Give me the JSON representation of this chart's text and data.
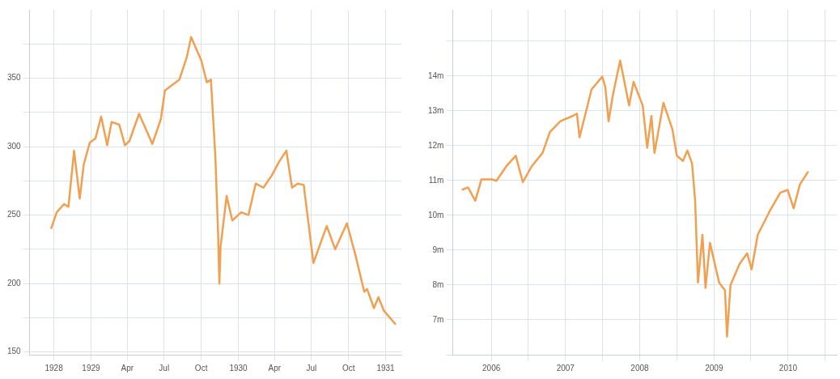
{
  "chart_data": [
    {
      "type": "line",
      "x": [
        "1928-09-24",
        "1928-10-08",
        "1928-10-26",
        "1928-11-06",
        "1928-11-20",
        "1928-12-04",
        "1928-12-14",
        "1928-12-29",
        "1929-01-12",
        "1929-01-26",
        "1929-02-10",
        "1929-02-21",
        "1929-03-12",
        "1929-03-26",
        "1929-04-06",
        "1929-04-30",
        "1929-06-02",
        "1929-06-23",
        "1929-07-03",
        "1929-07-21",
        "1929-08-08",
        "1929-08-26",
        "1929-09-06",
        "1929-10-01",
        "1929-10-15",
        "1929-10-25",
        "1929-11-05",
        "1929-11-12",
        "1929-11-15",
        "1929-11-18",
        "1929-12-03",
        "1929-12-17",
        "1930-01-08",
        "1930-01-26",
        "1930-02-13",
        "1930-03-04",
        "1930-03-25",
        "1930-04-12",
        "1930-04-30",
        "1930-05-14",
        "1930-05-28",
        "1930-06-12",
        "1930-07-06",
        "1930-08-08",
        "1930-08-29",
        "1930-09-27",
        "1930-10-18",
        "1930-11-09",
        "1930-11-16",
        "1930-12-03",
        "1930-12-14",
        "1930-12-28",
        "1931-01-26"
      ],
      "series": [
        {
          "color": "#f0a050",
          "values": [
            240,
            252,
            258,
            256,
            297,
            262,
            287,
            303,
            306,
            322,
            301,
            318,
            316,
            301,
            304,
            324,
            302,
            320,
            341,
            345,
            349,
            365,
            380,
            363,
            347,
            349,
            293,
            235,
            200,
            227,
            264,
            246,
            252,
            250,
            273,
            270,
            279,
            289,
            297,
            270,
            273,
            272,
            215,
            242,
            225,
            244,
            221,
            194,
            196,
            182,
            190,
            180,
            170
          ]
        }
      ],
      "xlim": [
        "1928-08-02",
        "1931-02-09"
      ],
      "xticks": [
        {
          "value": "1928-10",
          "label": "1928"
        },
        {
          "value": "1929-01",
          "label": "1929"
        },
        {
          "value": "1929-04",
          "label": "Apr"
        },
        {
          "value": "1929-07",
          "label": "Jul"
        },
        {
          "value": "1929-10",
          "label": "Oct"
        },
        {
          "value": "1930-01",
          "label": "1930"
        },
        {
          "value": "1930-04",
          "label": "Apr"
        },
        {
          "value": "1930-07",
          "label": "Jul"
        },
        {
          "value": "1930-10",
          "label": "Oct"
        },
        {
          "value": "1931-01",
          "label": "1931"
        }
      ],
      "ylim": [
        148,
        400
      ],
      "yticks": [
        150,
        {
          "value": 175,
          "label": null
        },
        200,
        {
          "value": 225,
          "label": null
        },
        250,
        {
          "value": 275,
          "label": null
        },
        300,
        {
          "value": 325,
          "label": null
        },
        350,
        {
          "value": 375,
          "label": null
        }
      ],
      "grid": true,
      "marker": "none",
      "line_style": "solid"
    },
    {
      "type": "line",
      "x": [
        "2005-08-09",
        "2005-09-08",
        "2005-10-14",
        "2005-11-13",
        "2006-01-04",
        "2006-01-26",
        "2006-03-16",
        "2006-05-01",
        "2006-06-05",
        "2006-07-19",
        "2006-09-10",
        "2006-10-16",
        "2006-12-07",
        "2007-02-05",
        "2007-02-26",
        "2007-03-11",
        "2007-04-13",
        "2007-05-09",
        "2007-07-01",
        "2007-07-16",
        "2007-08-01",
        "2007-08-22",
        "2007-09-27",
        "2007-11-10",
        "2007-12-02",
        "2008-01-16",
        "2008-02-07",
        "2008-02-28",
        "2008-03-14",
        "2008-04-27",
        "2008-06-10",
        "2008-07-02",
        "2008-08-01",
        "2008-08-23",
        "2008-09-15",
        "2008-09-30",
        "2008-10-14",
        "2008-11-05",
        "2008-11-20",
        "2008-12-12",
        "2009-01-26",
        "2009-02-24",
        "2009-03-06",
        "2009-03-23",
        "2009-05-07",
        "2009-06-13",
        "2009-07-05",
        "2009-08-04",
        "2009-10-02",
        "2009-11-23",
        "2009-12-29",
        "2010-01-28",
        "2010-02-27",
        "2010-04-10"
      ],
      "series": [
        {
          "color": "#f0a050",
          "values": [
            10.73,
            10.8,
            10.42,
            11.03,
            11.03,
            10.99,
            11.41,
            11.71,
            10.95,
            11.41,
            11.79,
            12.39,
            12.7,
            12.85,
            12.92,
            12.24,
            13.0,
            13.61,
            13.98,
            13.68,
            12.7,
            13.45,
            14.44,
            13.15,
            13.83,
            13.15,
            11.94,
            12.85,
            11.79,
            13.23,
            12.47,
            11.71,
            11.56,
            11.86,
            11.48,
            10.42,
            8.07,
            9.44,
            7.92,
            9.21,
            8.07,
            7.85,
            6.52,
            8.0,
            8.61,
            8.91,
            8.45,
            9.44,
            10.12,
            10.65,
            10.73,
            10.2,
            10.88,
            11.26
          ]
        }
      ],
      "xlim": [
        "2005-06-25",
        "2010-08-28"
      ],
      "xticks": [
        {
          "value": "2006-01",
          "label": "2006"
        },
        {
          "value": "2006-07",
          "label": null
        },
        {
          "value": "2007-01",
          "label": "2007"
        },
        {
          "value": "2007-07",
          "label": null
        },
        {
          "value": "2008-01",
          "label": "2008"
        },
        {
          "value": "2008-07",
          "label": null
        },
        {
          "value": "2009-01",
          "label": "2009"
        },
        {
          "value": "2009-07",
          "label": null
        },
        {
          "value": "2010-01",
          "label": "2010"
        },
        {
          "value": "2010-07",
          "label": null
        }
      ],
      "ylim": [
        6,
        15.9
      ],
      "yticks": [
        {
          "value": 6,
          "label": null
        },
        {
          "value": 7,
          "label": "7m"
        },
        {
          "value": 8,
          "label": "8m"
        },
        {
          "value": 9,
          "label": "9m"
        },
        {
          "value": 10,
          "label": "10m"
        },
        {
          "value": 11,
          "label": "11m"
        },
        {
          "value": 12,
          "label": "12m"
        },
        {
          "value": 13,
          "label": "13m"
        },
        {
          "value": 14,
          "label": "14m"
        },
        {
          "value": 15,
          "label": null
        }
      ],
      "grid": true,
      "marker": "none",
      "line_style": "solid"
    }
  ]
}
